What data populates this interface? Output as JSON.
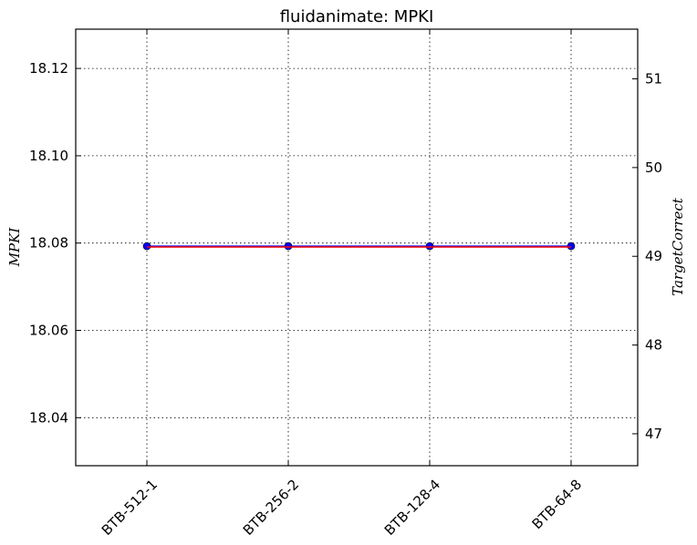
{
  "chart_data": {
    "type": "line",
    "title": "fluidanimate: MPKI",
    "ylabel": "MPKI",
    "y2label": "TargetCorrect",
    "categories": [
      "BTB-512-1",
      "BTB-256-2",
      "BTB-128-4",
      "BTB-64-8"
    ],
    "series": [
      {
        "values": [
          18.0793,
          18.0793,
          18.0793,
          18.0793
        ],
        "color": "#0000ff",
        "marker": "circle"
      },
      {
        "values": [
          49.105,
          49.105,
          49.105,
          49.105
        ],
        "color": "#ff0000",
        "marker": "none",
        "axis": "right"
      }
    ],
    "ylim": [
      18.029,
      18.129
    ],
    "y2lim": [
      46.64,
      51.56
    ],
    "yticks": [
      "18.04",
      "18.06",
      "18.08",
      "18.10",
      "18.12"
    ],
    "y2ticks": [
      "47",
      "48",
      "49",
      "50",
      "51"
    ],
    "grid": true
  }
}
